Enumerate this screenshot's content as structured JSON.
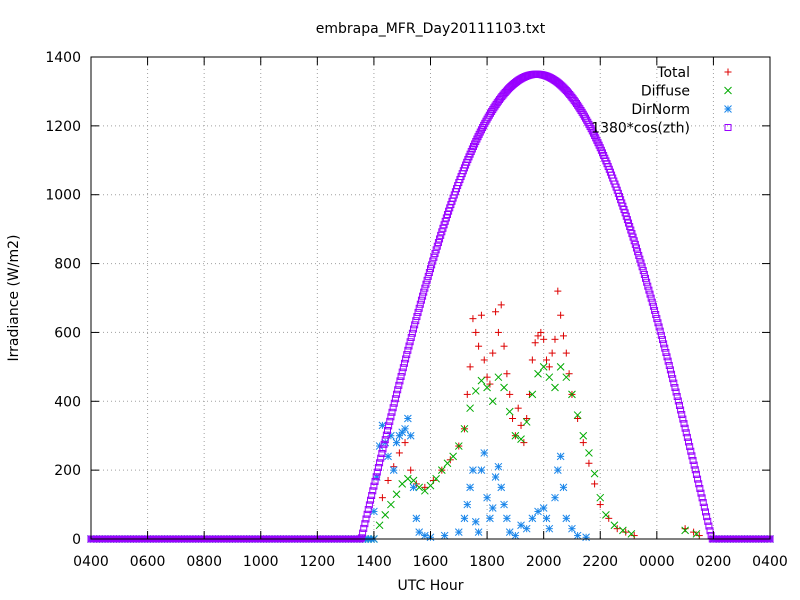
{
  "chart_data": {
    "type": "scatter",
    "title": "embrapa_MFR_Day20111103.txt",
    "xlabel": "UTC Hour",
    "ylabel": "Irradiance (W/m2)",
    "ylim": [
      0,
      1400
    ],
    "xlim": [
      0,
      24
    ],
    "grid": true,
    "legend_position": "top-right",
    "yticks": [
      0,
      200,
      400,
      600,
      800,
      1000,
      1200,
      1400
    ],
    "xtick_labels": [
      "0400",
      "0600",
      "0800",
      "1000",
      "1200",
      "1400",
      "1600",
      "1800",
      "2000",
      "2200",
      "0000",
      "0200",
      "0400"
    ],
    "series": [
      {
        "name": "Total",
        "marker": "plus",
        "color": "#dd0000",
        "points": [
          [
            10.3,
            120
          ],
          [
            10.5,
            170
          ],
          [
            10.7,
            210
          ],
          [
            10.9,
            250
          ],
          [
            11.1,
            280
          ],
          [
            11.3,
            200
          ],
          [
            11.5,
            160
          ],
          [
            11.8,
            150
          ],
          [
            12.1,
            170
          ],
          [
            12.4,
            200
          ],
          [
            12.7,
            230
          ],
          [
            13.0,
            270
          ],
          [
            13.2,
            320
          ],
          [
            13.3,
            420
          ],
          [
            13.4,
            500
          ],
          [
            13.5,
            640
          ],
          [
            13.6,
            600
          ],
          [
            13.7,
            560
          ],
          [
            13.8,
            650
          ],
          [
            13.9,
            520
          ],
          [
            14.0,
            470
          ],
          [
            14.1,
            450
          ],
          [
            14.2,
            540
          ],
          [
            14.3,
            660
          ],
          [
            14.4,
            600
          ],
          [
            14.5,
            680
          ],
          [
            14.6,
            560
          ],
          [
            14.7,
            480
          ],
          [
            14.8,
            420
          ],
          [
            14.9,
            350
          ],
          [
            15.0,
            300
          ],
          [
            15.1,
            380
          ],
          [
            15.2,
            330
          ],
          [
            15.3,
            280
          ],
          [
            15.4,
            350
          ],
          [
            15.5,
            420
          ],
          [
            15.6,
            520
          ],
          [
            15.7,
            570
          ],
          [
            15.8,
            590
          ],
          [
            15.9,
            600
          ],
          [
            16.0,
            580
          ],
          [
            16.1,
            520
          ],
          [
            16.2,
            500
          ],
          [
            16.3,
            540
          ],
          [
            16.4,
            580
          ],
          [
            16.5,
            720
          ],
          [
            16.6,
            650
          ],
          [
            16.7,
            590
          ],
          [
            16.8,
            540
          ],
          [
            16.9,
            480
          ],
          [
            17.0,
            420
          ],
          [
            17.2,
            350
          ],
          [
            17.4,
            280
          ],
          [
            17.6,
            220
          ],
          [
            17.8,
            160
          ],
          [
            18.0,
            100
          ],
          [
            18.3,
            60
          ],
          [
            18.6,
            30
          ],
          [
            18.9,
            20
          ],
          [
            19.2,
            10
          ],
          [
            21.0,
            30
          ],
          [
            21.3,
            20
          ],
          [
            21.5,
            10
          ]
        ]
      },
      {
        "name": "Diffuse",
        "marker": "cross",
        "color": "#00aa00",
        "points": [
          [
            10.2,
            40
          ],
          [
            10.4,
            70
          ],
          [
            10.6,
            100
          ],
          [
            10.8,
            130
          ],
          [
            11.0,
            160
          ],
          [
            11.2,
            175
          ],
          [
            11.4,
            170
          ],
          [
            11.6,
            150
          ],
          [
            11.8,
            140
          ],
          [
            12.0,
            155
          ],
          [
            12.2,
            175
          ],
          [
            12.4,
            200
          ],
          [
            12.6,
            220
          ],
          [
            12.8,
            240
          ],
          [
            13.0,
            270
          ],
          [
            13.2,
            320
          ],
          [
            13.4,
            380
          ],
          [
            13.6,
            430
          ],
          [
            13.8,
            460
          ],
          [
            14.0,
            440
          ],
          [
            14.2,
            400
          ],
          [
            14.4,
            470
          ],
          [
            14.6,
            440
          ],
          [
            14.8,
            370
          ],
          [
            15.0,
            300
          ],
          [
            15.2,
            290
          ],
          [
            15.4,
            340
          ],
          [
            15.6,
            420
          ],
          [
            15.8,
            480
          ],
          [
            16.0,
            500
          ],
          [
            16.2,
            470
          ],
          [
            16.4,
            440
          ],
          [
            16.6,
            500
          ],
          [
            16.8,
            470
          ],
          [
            17.0,
            420
          ],
          [
            17.2,
            360
          ],
          [
            17.4,
            300
          ],
          [
            17.6,
            250
          ],
          [
            17.8,
            190
          ],
          [
            18.0,
            120
          ],
          [
            18.2,
            70
          ],
          [
            18.5,
            40
          ],
          [
            18.8,
            25
          ],
          [
            19.1,
            15
          ],
          [
            21.0,
            25
          ],
          [
            21.4,
            15
          ]
        ]
      },
      {
        "name": "DirNorm",
        "marker": "star",
        "color": "#1a86ea",
        "points": [
          [
            10.0,
            80
          ],
          [
            10.1,
            180
          ],
          [
            10.2,
            270
          ],
          [
            10.3,
            330
          ],
          [
            10.4,
            280
          ],
          [
            10.5,
            240
          ],
          [
            10.6,
            300
          ],
          [
            10.7,
            200
          ],
          [
            10.8,
            280
          ],
          [
            10.9,
            300
          ],
          [
            11.0,
            310
          ],
          [
            11.1,
            320
          ],
          [
            11.2,
            350
          ],
          [
            11.3,
            300
          ],
          [
            11.4,
            150
          ],
          [
            11.5,
            60
          ],
          [
            11.6,
            20
          ],
          [
            11.8,
            10
          ],
          [
            12.0,
            5
          ],
          [
            12.5,
            10
          ],
          [
            13.0,
            20
          ],
          [
            13.2,
            60
          ],
          [
            13.3,
            100
          ],
          [
            13.4,
            150
          ],
          [
            13.5,
            200
          ],
          [
            13.6,
            50
          ],
          [
            13.7,
            20
          ],
          [
            13.8,
            200
          ],
          [
            13.9,
            250
          ],
          [
            14.0,
            120
          ],
          [
            14.1,
            60
          ],
          [
            14.2,
            90
          ],
          [
            14.3,
            180
          ],
          [
            14.4,
            210
          ],
          [
            14.5,
            150
          ],
          [
            14.6,
            100
          ],
          [
            14.7,
            60
          ],
          [
            14.8,
            20
          ],
          [
            15.0,
            10
          ],
          [
            15.2,
            40
          ],
          [
            15.4,
            30
          ],
          [
            15.6,
            60
          ],
          [
            15.8,
            80
          ],
          [
            16.0,
            90
          ],
          [
            16.1,
            60
          ],
          [
            16.2,
            30
          ],
          [
            16.4,
            120
          ],
          [
            16.5,
            200
          ],
          [
            16.6,
            240
          ],
          [
            16.7,
            150
          ],
          [
            16.8,
            60
          ],
          [
            17.0,
            30
          ],
          [
            17.2,
            10
          ],
          [
            17.5,
            5
          ]
        ]
      },
      {
        "name": "1380*cos(zth)",
        "marker": "square",
        "color": "#9900ff",
        "curve": {
          "rise": 9.55,
          "set": 21.95,
          "peak": 1350,
          "peak_time": 15.75
        }
      }
    ]
  }
}
